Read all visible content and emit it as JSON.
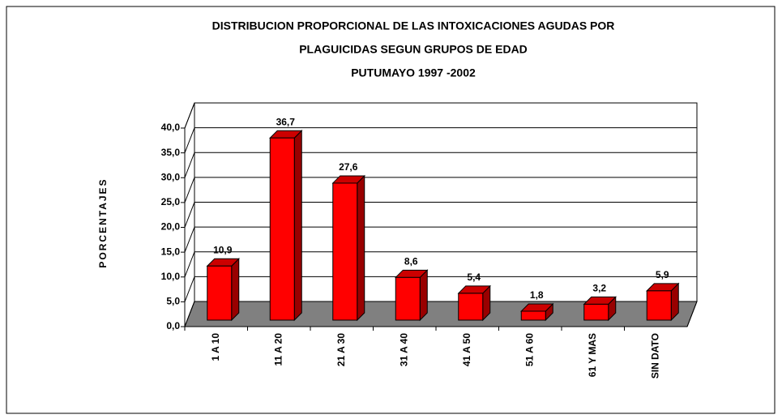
{
  "chart_data": {
    "type": "bar3d",
    "title": [
      "DISTRIBUCION PROPORCIONAL DE LAS INTOXICACIONES AGUDAS POR",
      "PLAGUICIDAS SEGUN GRUPOS DE EDAD",
      "PUTUMAYO 1997 -2002"
    ],
    "ylabel": "PORCENTAJES",
    "categories": [
      "1 A 10",
      "11 A 20",
      "21 A 30",
      "31 A 40",
      "41 A 50",
      "51 A 60",
      "61 Y MAS",
      "SIN DATO"
    ],
    "values": [
      10.9,
      36.7,
      27.6,
      8.6,
      5.4,
      1.8,
      3.2,
      5.9
    ],
    "value_labels": [
      "10,9",
      "36,7",
      "27,6",
      "8,6",
      "5,4",
      "1,8",
      "3,2",
      "5,9"
    ],
    "color": "#ff0000",
    "ylim": [
      0,
      40
    ],
    "yticks": [
      {
        "value": 0,
        "label": "0,0"
      },
      {
        "value": 5,
        "label": "5,0"
      },
      {
        "value": 10,
        "label": "10,0"
      },
      {
        "value": 15,
        "label": "15,0"
      },
      {
        "value": 20,
        "label": "20,0"
      },
      {
        "value": 25,
        "label": "25,0"
      },
      {
        "value": 30,
        "label": "30,0"
      },
      {
        "value": 35,
        "label": "35,0"
      },
      {
        "value": 40,
        "label": "40,0"
      }
    ],
    "grid": true
  }
}
